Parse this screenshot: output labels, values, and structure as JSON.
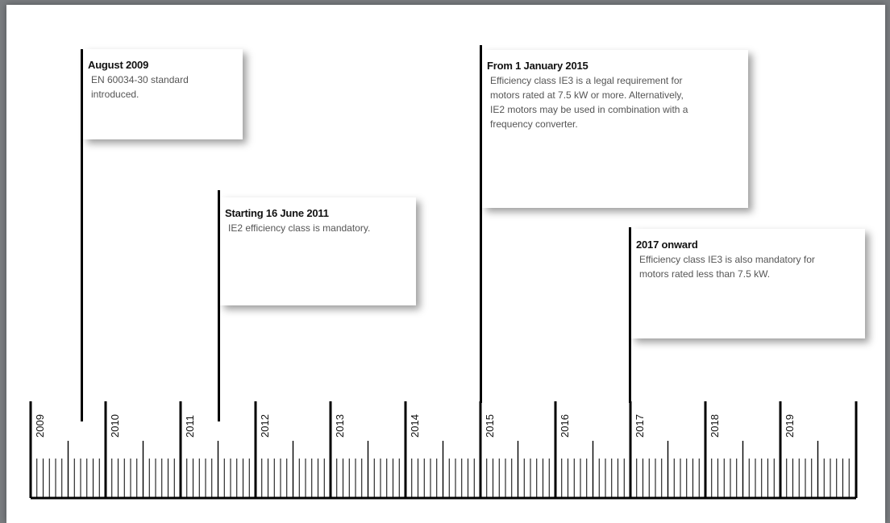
{
  "events": [
    {
      "title": "August 2009",
      "body": "EN 60034-30 standard\nintroduced."
    },
    {
      "title": "Starting 16  June 2011",
      "body": "IE2 efficiency class is mandatory."
    },
    {
      "title": "From 1  January 2015",
      "body": "Efficiency class IE3 is a legal requirement for\nmotors rated at 7.5 kW or more.  Alternatively,\nIE2 motors may be used in combination with a\nfrequency converter."
    },
    {
      "title": "2017 onward",
      "body": "Efficiency class IE3 is also mandatory for\nmotors rated less than 7.5 kW."
    }
  ],
  "timeline": {
    "years": [
      "2009",
      "2010",
      "2011",
      "2012",
      "2013",
      "2014",
      "2015",
      "2016",
      "2017",
      "2018",
      "2019"
    ]
  },
  "colors": {
    "background": "#7a7d80",
    "panel": "#ffffff",
    "line": "#000000",
    "title_text": "#111111",
    "body_text": "#555555"
  }
}
